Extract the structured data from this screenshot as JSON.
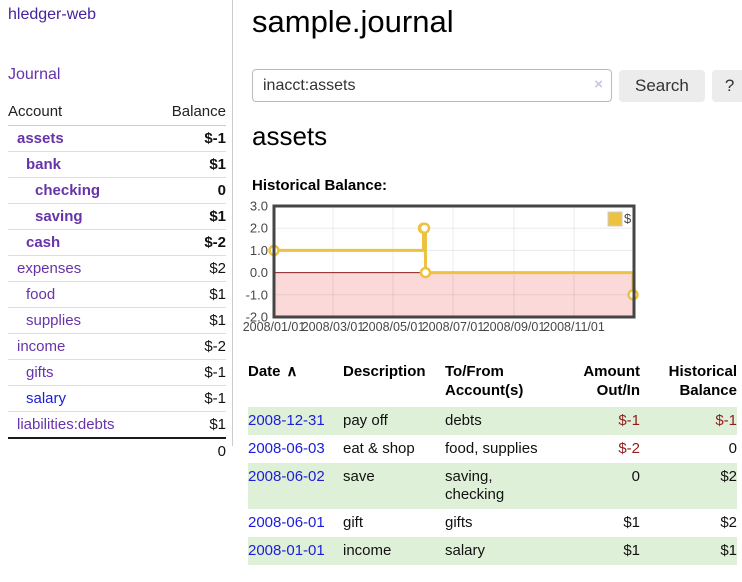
{
  "brand": {
    "label": "hledger-web"
  },
  "sidebar": {
    "journal_link": "Journal",
    "accounts_table": {
      "headers": {
        "account": "Account",
        "balance": "Balance"
      },
      "rows": [
        {
          "name": "assets",
          "depth": 1,
          "bold": true,
          "balance": "$-1",
          "balance_tone": "negative-strong"
        },
        {
          "name": "bank",
          "depth": 2,
          "bold": true,
          "balance": "$1",
          "balance_tone": "normal"
        },
        {
          "name": "checking",
          "depth": 3,
          "bold": true,
          "balance": "0",
          "balance_tone": "normal"
        },
        {
          "name": "saving",
          "depth": 3,
          "bold": true,
          "balance": "$1",
          "balance_tone": "normal"
        },
        {
          "name": "cash",
          "depth": 2,
          "bold": true,
          "balance": "$-2",
          "balance_tone": "negative-strong"
        },
        {
          "name": "expenses",
          "depth": 1,
          "bold": false,
          "balance": "$2",
          "balance_tone": "normal"
        },
        {
          "name": "food",
          "depth": 2,
          "bold": false,
          "balance": "$1",
          "balance_tone": "normal"
        },
        {
          "name": "supplies",
          "depth": 2,
          "bold": false,
          "balance": "$1",
          "balance_tone": "normal"
        },
        {
          "name": "income",
          "depth": 1,
          "bold": false,
          "balance": "$-2",
          "balance_tone": "negative-soft"
        },
        {
          "name": "gifts",
          "depth": 2,
          "bold": false,
          "balance": "$-1",
          "balance_tone": "negative-soft"
        },
        {
          "name": "salary",
          "depth": 2,
          "bold": false,
          "balance": "$-1",
          "balance_tone": "negative-soft",
          "link_color": "blue"
        },
        {
          "name": "liabilities:debts",
          "depth": 1,
          "bold": false,
          "balance": "$1",
          "balance_tone": "normal"
        }
      ],
      "total": "0"
    }
  },
  "main": {
    "title": "sample.journal",
    "search": {
      "value": "inacct:assets",
      "clear_icon": "×",
      "search_button": "Search",
      "help_button": "?"
    },
    "account_heading": "assets",
    "chart_heading": "Historical Balance:"
  },
  "chart_data": {
    "type": "line",
    "title": "Historical Balance",
    "x_range": [
      "2008-01-01",
      "2009-01-01"
    ],
    "ylim": [
      -2,
      3
    ],
    "y_ticks": [
      "3.0",
      "2.0",
      "1.0",
      "0.0",
      "-1.0",
      "-2.0"
    ],
    "x_ticks": [
      {
        "date": "2008-01-01",
        "label": "2008/01/01"
      },
      {
        "date": "2008-03-01",
        "label": "2008/03/01"
      },
      {
        "date": "2008-05-01",
        "label": "2008/05/01"
      },
      {
        "date": "2008-07-01",
        "label": "2008/07/01"
      },
      {
        "date": "2008-09-01",
        "label": "2008/09/01"
      },
      {
        "date": "2008-11-01",
        "label": "2008/11/01"
      }
    ],
    "series": [
      {
        "name": "$",
        "color": "#edc240",
        "step": true,
        "points": [
          {
            "date": "2008-01-01",
            "value": 1
          },
          {
            "date": "2008-06-01",
            "value": 2
          },
          {
            "date": "2008-06-02",
            "value": 2
          },
          {
            "date": "2008-06-03",
            "value": 0
          },
          {
            "date": "2008-12-31",
            "value": -1
          }
        ]
      }
    ],
    "legend": {
      "label": "$",
      "position": "top-right"
    },
    "grid": true,
    "colors": {
      "negative_region": "#fbd9d9",
      "zero_line": "#8b2020",
      "grid_line": "rgba(0,0,0,0.08)",
      "border": "#454545",
      "tick_text": "#474747",
      "marker_fill": "#ffffff"
    }
  },
  "register": {
    "headers": {
      "date": "Date",
      "sort_indicator": "∧",
      "description": "Description",
      "accounts": "To/From Account(s)",
      "amount": "Amount Out/In",
      "balance": "Historical Balance"
    },
    "rows": [
      {
        "date": "2008-12-31",
        "description": "pay off",
        "accounts": "debts",
        "amount": "$-1",
        "amount_tone": "neg",
        "balance": "$-1",
        "balance_tone": "neg"
      },
      {
        "date": "2008-06-03",
        "description": "eat & shop",
        "accounts": "food, supplies",
        "amount": "$-2",
        "amount_tone": "neg",
        "balance": "0",
        "balance_tone": "normal"
      },
      {
        "date": "2008-06-02",
        "description": "save",
        "accounts": "saving,\nchecking",
        "amount": "0",
        "amount_tone": "normal",
        "balance": "$2",
        "balance_tone": "normal"
      },
      {
        "date": "2008-06-01",
        "description": "gift",
        "accounts": "gifts",
        "amount": "$1",
        "amount_tone": "normal",
        "balance": "$2",
        "balance_tone": "normal"
      },
      {
        "date": "2008-01-01",
        "description": "income",
        "accounts": "salary",
        "amount": "$1",
        "amount_tone": "normal",
        "balance": "$1",
        "balance_tone": "normal"
      }
    ]
  }
}
